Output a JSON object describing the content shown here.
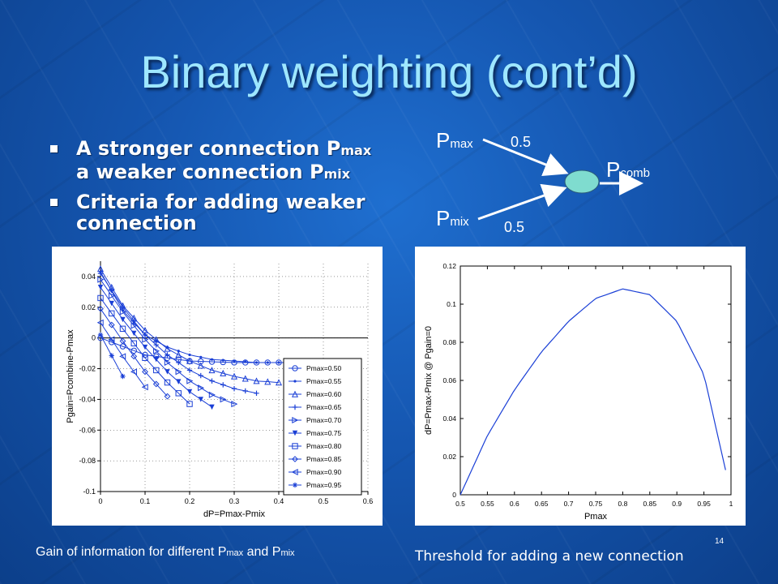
{
  "slide": {
    "title": "Binary weighting (cont’d)",
    "page_number": "14"
  },
  "bullets": [
    {
      "text": "A stronger connection P",
      "sub1": "max",
      "text2": " a weaker connection P",
      "sub2": "mix"
    },
    {
      "text": "Criteria for adding weaker connection"
    }
  ],
  "diagram": {
    "p1": "P",
    "p1_sub": "max",
    "w1": "0.5",
    "p2": "P",
    "p2_sub": "mix",
    "w2": "0.5",
    "out": "P",
    "out_sub": "comb"
  },
  "captions": {
    "left": "Gain of information for different P",
    "left_sub1": "max",
    "left_and": " and P",
    "left_sub2": "mix",
    "right": "Threshold for adding a new connection"
  },
  "chart_data": [
    {
      "type": "line",
      "xlabel": "dP=Pmax-Pmix",
      "ylabel": "Pgain=Pcombine-Pmax",
      "xlim": [
        0,
        0.6
      ],
      "ylim": [
        -0.1,
        0.05
      ],
      "x_ticks": [
        "0",
        "0.1",
        "0.2",
        "0.3",
        "0.4",
        "0.5",
        "0.6"
      ],
      "y_ticks": [
        "0.04",
        "0.02",
        "0",
        "-0.02",
        "-0.04",
        "-0.06",
        "-0.08",
        "-0.1"
      ],
      "legend_position": "right",
      "series": [
        {
          "name": "Pmax=0.50",
          "end": 0.4,
          "points": [
            [
              0,
              0
            ],
            [
              0.1,
              -0.011
            ],
            [
              0.2,
              -0.015
            ],
            [
              0.3,
              -0.016
            ],
            [
              0.4,
              -0.016
            ]
          ]
        },
        {
          "name": "Pmax=0.55",
          "end": 0.45,
          "points": [
            [
              0,
              0.043
            ],
            [
              0.05,
              0.018
            ],
            [
              0.1,
              0.002
            ],
            [
              0.15,
              -0.006
            ],
            [
              0.2,
              -0.011
            ],
            [
              0.25,
              -0.014
            ],
            [
              0.3,
              -0.015
            ],
            [
              0.35,
              -0.016
            ],
            [
              0.4,
              -0.016
            ],
            [
              0.45,
              -0.016
            ]
          ]
        },
        {
          "name": "Pmax=0.60",
          "end": 0.4,
          "points": [
            [
              0,
              0.045
            ],
            [
              0.05,
              0.021
            ],
            [
              0.1,
              0.005
            ],
            [
              0.15,
              -0.007
            ],
            [
              0.2,
              -0.015
            ],
            [
              0.25,
              -0.021
            ],
            [
              0.3,
              -0.025
            ],
            [
              0.35,
              -0.028
            ],
            [
              0.4,
              -0.029
            ]
          ]
        },
        {
          "name": "Pmax=0.65",
          "end": 0.35,
          "points": [
            [
              0,
              0.042
            ],
            [
              0.05,
              0.02
            ],
            [
              0.1,
              0.002
            ],
            [
              0.15,
              -0.011
            ],
            [
              0.2,
              -0.021
            ],
            [
              0.25,
              -0.028
            ],
            [
              0.3,
              -0.033
            ],
            [
              0.35,
              -0.036
            ]
          ]
        },
        {
          "name": "Pmax=0.70",
          "end": 0.3,
          "points": [
            [
              0,
              0.038
            ],
            [
              0.05,
              0.017
            ],
            [
              0.1,
              -0.001
            ],
            [
              0.15,
              -0.016
            ],
            [
              0.2,
              -0.028
            ],
            [
              0.25,
              -0.037
            ],
            [
              0.3,
              -0.043
            ]
          ]
        },
        {
          "name": "Pmax=0.75",
          "end": 0.25,
          "points": [
            [
              0,
              0.033
            ],
            [
              0.05,
              0.012
            ],
            [
              0.1,
              -0.006
            ],
            [
              0.15,
              -0.022
            ],
            [
              0.2,
              -0.035
            ],
            [
              0.25,
              -0.045
            ]
          ]
        },
        {
          "name": "Pmax=0.80",
          "end": 0.2,
          "points": [
            [
              0,
              0.026
            ],
            [
              0.05,
              0.006
            ],
            [
              0.1,
              -0.013
            ],
            [
              0.15,
              -0.029
            ],
            [
              0.2,
              -0.043
            ]
          ]
        },
        {
          "name": "Pmax=0.85",
          "end": 0.15,
          "points": [
            [
              0,
              0.019
            ],
            [
              0.05,
              -0.002
            ],
            [
              0.1,
              -0.022
            ],
            [
              0.15,
              -0.038
            ]
          ]
        },
        {
          "name": "Pmax=0.90",
          "end": 0.1,
          "points": [
            [
              0,
              0.01
            ],
            [
              0.05,
              -0.012
            ],
            [
              0.1,
              -0.032
            ]
          ]
        },
        {
          "name": "Pmax=0.95",
          "end": 0.05,
          "points": [
            [
              0,
              0.002
            ],
            [
              0.05,
              -0.025
            ]
          ]
        }
      ]
    },
    {
      "type": "line",
      "xlabel": "Pmax",
      "ylabel": "dP=Pmax-Pmix @ Pgain=0",
      "xlim": [
        0.5,
        1
      ],
      "ylim": [
        0,
        0.12
      ],
      "x_ticks": [
        "0.5",
        "0.55",
        "0.6",
        "0.65",
        "0.7",
        "0.75",
        "0.8",
        "0.85",
        "0.9",
        "0.95",
        "1"
      ],
      "y_ticks": [
        "0.12",
        "0.1",
        "0.08",
        "0.06",
        "0.04",
        "0.02",
        "0"
      ],
      "series": [
        {
          "points": [
            [
              0.5,
              0
            ],
            [
              0.55,
              0.031
            ],
            [
              0.6,
              0.055
            ],
            [
              0.65,
              0.075
            ],
            [
              0.7,
              0.091
            ],
            [
              0.75,
              0.103
            ],
            [
              0.8,
              0.108
            ],
            [
              0.85,
              0.105
            ],
            [
              0.9,
              0.091
            ],
            [
              0.95,
              0.063
            ],
            [
              0.99,
              0.013
            ]
          ]
        }
      ]
    }
  ],
  "colors": {
    "title": "#9ee7ff",
    "line": "#1a3fd6",
    "node": "#7fdccf"
  }
}
